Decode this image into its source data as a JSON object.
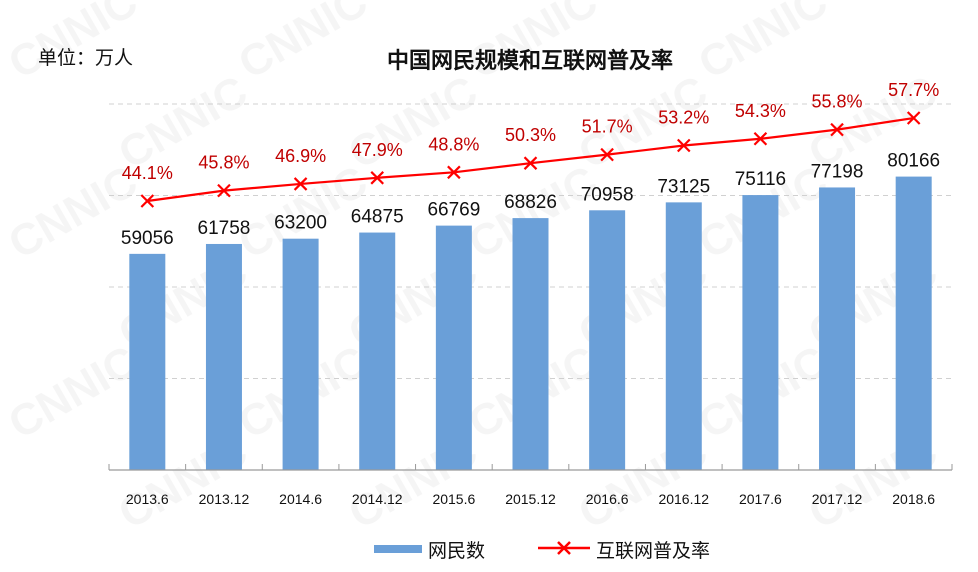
{
  "watermark": "CNNIC",
  "unit_label": "单位：万人",
  "chart_data": {
    "type": "bar+line",
    "title": "中国网民规模和互联网普及率",
    "categories": [
      "2013.6",
      "2013.12",
      "2014.6",
      "2014.12",
      "2015.6",
      "2015.12",
      "2016.6",
      "2016.12",
      "2017.6",
      "2017.12",
      "2018.6"
    ],
    "series": [
      {
        "name": "网民数",
        "type": "bar",
        "axis": "left",
        "color": "#6a9fd8",
        "values": [
          59056,
          61758,
          63200,
          64875,
          66769,
          68826,
          70958,
          73125,
          75116,
          77198,
          80166
        ]
      },
      {
        "name": "互联网普及率",
        "type": "line",
        "axis": "right",
        "color": "#ff0000",
        "label_color": "#c00000",
        "marker": "x",
        "values": [
          44.1,
          45.8,
          46.9,
          47.9,
          48.8,
          50.3,
          51.7,
          53.2,
          54.3,
          55.8,
          57.7
        ]
      }
    ],
    "ylim_left": [
      0,
      100000
    ],
    "ylim_right": [
      0,
      60
    ],
    "grid_step_left": 25000,
    "grid": "dashed horizontal",
    "legend": "bottom-center",
    "axes_visible": false
  }
}
